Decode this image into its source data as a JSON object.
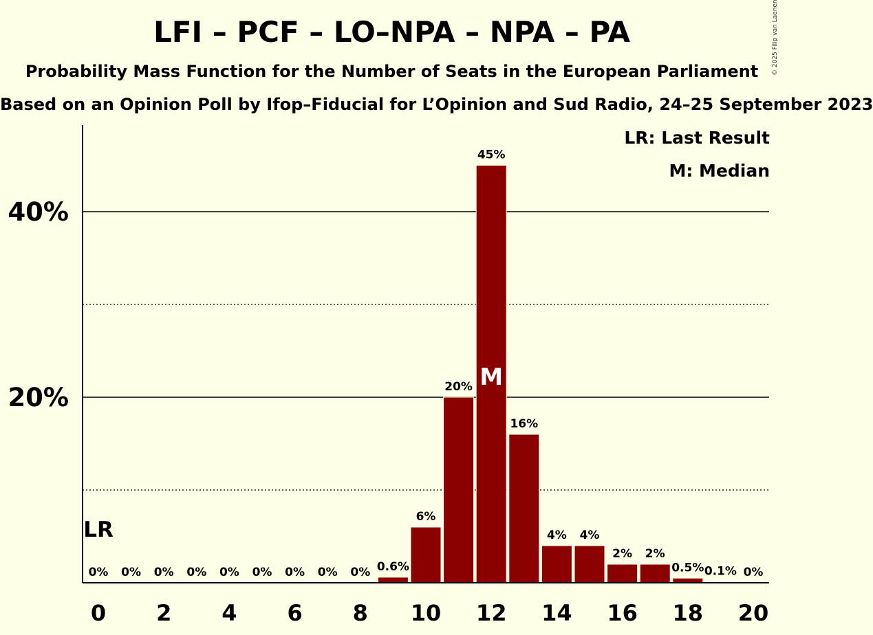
{
  "header": {
    "title": "LFI – PCF – LO–NPA – NPA – PA",
    "subtitle": "Probability Mass Function for the Number of Seats in the European Parliament",
    "subtitle2": "Based on an Opinion Poll by Ifop–Fiducial for L’Opinion and Sud Radio, 24–25 September 2023",
    "copyright": "© 2025 Filip van Laenen"
  },
  "legend": {
    "last_result": "LR: Last Result",
    "median": "M: Median"
  },
  "colors": {
    "background": "#FFFEE6",
    "bar": "#8B0000"
  },
  "chart_data": {
    "type": "bar",
    "x": [
      0,
      1,
      2,
      3,
      4,
      5,
      6,
      7,
      8,
      9,
      10,
      11,
      12,
      13,
      14,
      15,
      16,
      17,
      18,
      19,
      20
    ],
    "values": [
      0,
      0,
      0,
      0,
      0,
      0,
      0,
      0,
      0,
      0.6,
      6,
      20,
      45,
      16,
      4,
      4,
      2,
      2,
      0.5,
      0.1,
      0
    ],
    "value_labels": [
      "0%",
      "0%",
      "0%",
      "0%",
      "0%",
      "0%",
      "0%",
      "0%",
      "0%",
      "0.6%",
      "6%",
      "20%",
      "45%",
      "16%",
      "4%",
      "4%",
      "2%",
      "2%",
      "0.5%",
      "0.1%",
      "0%"
    ],
    "x_tick_labels": [
      "0",
      "2",
      "4",
      "6",
      "8",
      "10",
      "12",
      "14",
      "16",
      "18",
      "20"
    ],
    "x_ticks": [
      0,
      2,
      4,
      6,
      8,
      10,
      12,
      14,
      16,
      18,
      20
    ],
    "y_tick_labels": [
      "20%",
      "40%"
    ],
    "y_ticks": [
      20,
      40
    ],
    "y_minor_gridlines": [
      10,
      30
    ],
    "ylim": [
      0,
      49
    ],
    "last_result_seat": 0,
    "last_result_label": "LR",
    "median_seat": 12,
    "median_label": "M"
  }
}
